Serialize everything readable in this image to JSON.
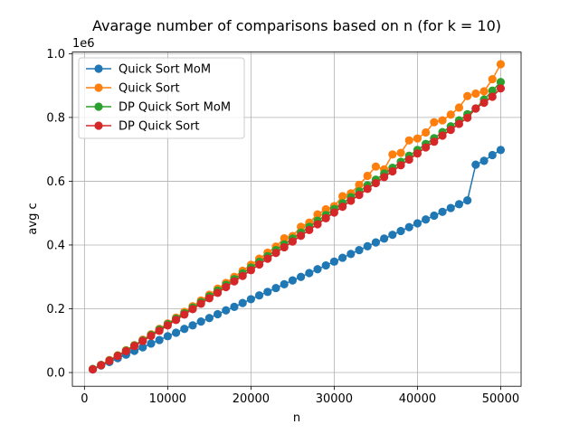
{
  "chart_data": {
    "type": "line",
    "title": "Avarage number of comparisons based on n (for k = 10)",
    "xlabel": "n",
    "ylabel": "avg c",
    "y_offset_label": "1e6",
    "xlim": [
      -1450,
      52450
    ],
    "ylim": [
      -0.043,
      1.005
    ],
    "x_ticks": [
      0,
      10000,
      20000,
      30000,
      40000,
      50000
    ],
    "x_tick_labels": [
      "0",
      "10000",
      "20000",
      "30000",
      "40000",
      "50000"
    ],
    "y_ticks": [
      0.0,
      0.2,
      0.4,
      0.6,
      0.8,
      1.0
    ],
    "y_tick_labels": [
      "0.0",
      "0.2",
      "0.4",
      "0.6",
      "0.8",
      "1.0"
    ],
    "grid": true,
    "legend_position": "top-left",
    "x": [
      1000,
      2000,
      3000,
      4000,
      5000,
      6000,
      7000,
      8000,
      9000,
      10000,
      11000,
      12000,
      13000,
      14000,
      15000,
      16000,
      17000,
      18000,
      19000,
      20000,
      21000,
      22000,
      23000,
      24000,
      25000,
      26000,
      27000,
      28000,
      29000,
      30000,
      31000,
      32000,
      33000,
      34000,
      35000,
      36000,
      37000,
      38000,
      39000,
      40000,
      41000,
      42000,
      43000,
      44000,
      45000,
      46000,
      47000,
      48000,
      49000,
      50000
    ],
    "series": [
      {
        "name": "Quick Sort MoM",
        "color": "#1f77b4",
        "values": [
          0.01,
          0.022,
          0.033,
          0.045,
          0.056,
          0.068,
          0.079,
          0.091,
          0.102,
          0.114,
          0.125,
          0.137,
          0.148,
          0.16,
          0.171,
          0.183,
          0.195,
          0.206,
          0.218,
          0.23,
          0.242,
          0.253,
          0.265,
          0.277,
          0.289,
          0.3,
          0.312,
          0.324,
          0.336,
          0.348,
          0.36,
          0.372,
          0.384,
          0.396,
          0.408,
          0.42,
          0.432,
          0.444,
          0.456,
          0.468,
          0.48,
          0.492,
          0.504,
          0.516,
          0.528,
          0.54,
          0.652,
          0.664,
          0.682,
          0.698
        ]
      },
      {
        "name": "Quick Sort",
        "color": "#ff7f0e",
        "values": [
          0.011,
          0.024,
          0.039,
          0.054,
          0.07,
          0.086,
          0.103,
          0.12,
          0.137,
          0.154,
          0.172,
          0.19,
          0.208,
          0.226,
          0.244,
          0.263,
          0.281,
          0.3,
          0.319,
          0.338,
          0.357,
          0.376,
          0.395,
          0.421,
          0.428,
          0.457,
          0.47,
          0.496,
          0.512,
          0.522,
          0.553,
          0.562,
          0.589,
          0.617,
          0.646,
          0.637,
          0.684,
          0.689,
          0.728,
          0.734,
          0.753,
          0.785,
          0.791,
          0.809,
          0.831,
          0.867,
          0.875,
          0.882,
          0.92,
          0.967
        ]
      },
      {
        "name": "DP Quick Sort MoM",
        "color": "#2ca02c",
        "values": [
          0.011,
          0.024,
          0.038,
          0.053,
          0.069,
          0.085,
          0.101,
          0.118,
          0.135,
          0.152,
          0.169,
          0.186,
          0.204,
          0.221,
          0.239,
          0.257,
          0.275,
          0.293,
          0.311,
          0.329,
          0.347,
          0.365,
          0.384,
          0.402,
          0.42,
          0.439,
          0.457,
          0.476,
          0.494,
          0.513,
          0.531,
          0.55,
          0.568,
          0.587,
          0.605,
          0.624,
          0.642,
          0.661,
          0.68,
          0.698,
          0.717,
          0.735,
          0.754,
          0.772,
          0.791,
          0.81,
          0.828,
          0.856,
          0.884,
          0.911
        ]
      },
      {
        "name": "DP Quick Sort",
        "color": "#d62728",
        "values": [
          0.01,
          0.023,
          0.037,
          0.052,
          0.067,
          0.083,
          0.099,
          0.115,
          0.131,
          0.148,
          0.165,
          0.182,
          0.199,
          0.216,
          0.233,
          0.25,
          0.268,
          0.286,
          0.303,
          0.321,
          0.339,
          0.357,
          0.375,
          0.393,
          0.411,
          0.429,
          0.447,
          0.465,
          0.484,
          0.502,
          0.52,
          0.539,
          0.557,
          0.576,
          0.594,
          0.613,
          0.631,
          0.65,
          0.668,
          0.687,
          0.706,
          0.724,
          0.743,
          0.761,
          0.78,
          0.799,
          0.828,
          0.846,
          0.865,
          0.891
        ]
      }
    ]
  }
}
